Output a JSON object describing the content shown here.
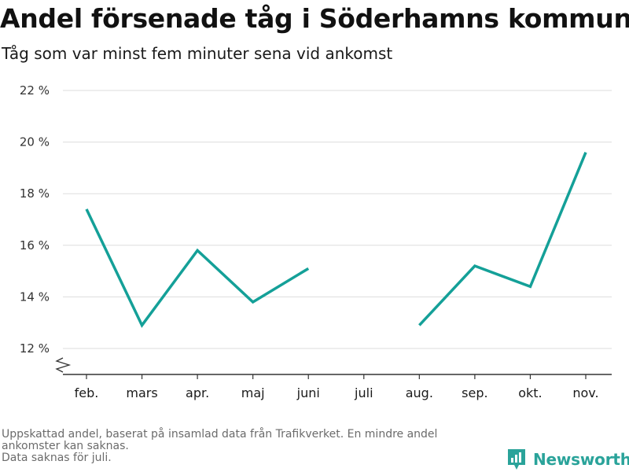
{
  "header": {
    "title": "Andel försenade tåg i Söderhamns kommun",
    "subtitle": "Tåg som var minst fem minuter sena vid ankomst"
  },
  "footnotes": [
    "Uppskattad andel, baserat på insamlad data från Trafikverket. En mindre andel",
    "ankomster kan saknas.",
    "Data saknas för juli."
  ],
  "brand": {
    "name": "Newsworthy",
    "icon": "newsworthy-logo-icon",
    "color": "#2aa39a"
  },
  "chart_data": {
    "type": "line",
    "title": "Andel försenade tåg i Söderhamns kommun",
    "subtitle": "Tåg som var minst fem minuter sena vid ankomst",
    "categories": [
      "feb.",
      "mars",
      "apr.",
      "maj",
      "juni",
      "juli",
      "aug.",
      "sep.",
      "okt.",
      "nov."
    ],
    "series": [
      {
        "values": [
          17.4,
          12.9,
          15.8,
          13.8,
          15.1,
          null,
          12.9,
          15.2,
          14.4,
          19.6
        ],
        "color": "#14a098"
      }
    ],
    "yticks": [
      12,
      14,
      16,
      18,
      20,
      22
    ],
    "ytick_suffix": " %",
    "ylim": [
      12,
      22
    ],
    "grid": true,
    "axis_break": true,
    "gridline_color": "#dddddd",
    "axis_color": "#333333"
  }
}
